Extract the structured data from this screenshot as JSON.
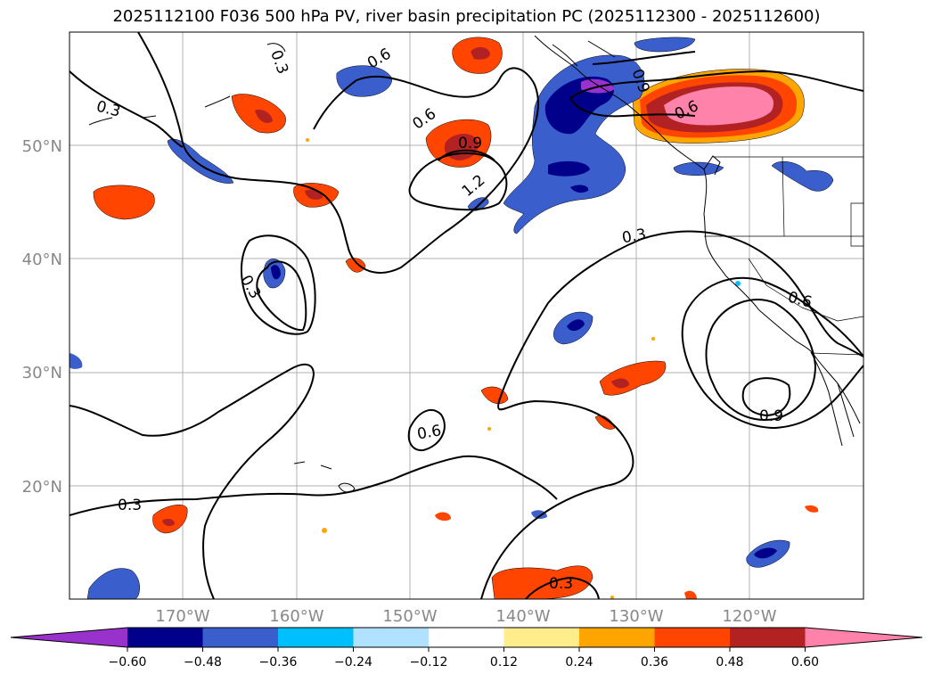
{
  "title": "2025112100 F036 500 hPa PV, river basin precipitation PC (2025112300 - 2025112600)",
  "lat_labels": [
    "50°N",
    "40°N",
    "30°N",
    "20°N"
  ],
  "lon_labels": [
    "170°W",
    "160°W",
    "150°W",
    "140°W",
    "130°W",
    "120°W"
  ],
  "contour_labels": [
    "0.3",
    "0.6",
    "0.9",
    "1.2",
    "0.3",
    "0.3",
    "0.6",
    "0.6",
    "0.9",
    "0.3",
    "0.6",
    "0.9",
    "0.3",
    "0.3",
    "0.6"
  ],
  "colorbar": {
    "ticks": [
      "−0.60",
      "−0.48",
      "−0.36",
      "−0.24",
      "−0.12",
      "0.12",
      "0.24",
      "0.36",
      "0.48",
      "0.60"
    ],
    "colors": [
      "#9932cc",
      "#00008b",
      "#3a5fcd",
      "#00bfff",
      "#b0e2ff",
      "#ffffff",
      "#ffec8b",
      "#ffa500",
      "#ff4500",
      "#b22222",
      "#ff82ab"
    ]
  },
  "colors": {
    "violet": "#9932cc",
    "navy": "#00008b",
    "royal": "#3a5fcd",
    "sky": "#00bfff",
    "pale_blue": "#b0e2ff",
    "yellow": "#ffec8b",
    "orange": "#ffa500",
    "orangered": "#ff4500",
    "firebrick": "#b22222",
    "pink": "#ff82ab"
  }
}
